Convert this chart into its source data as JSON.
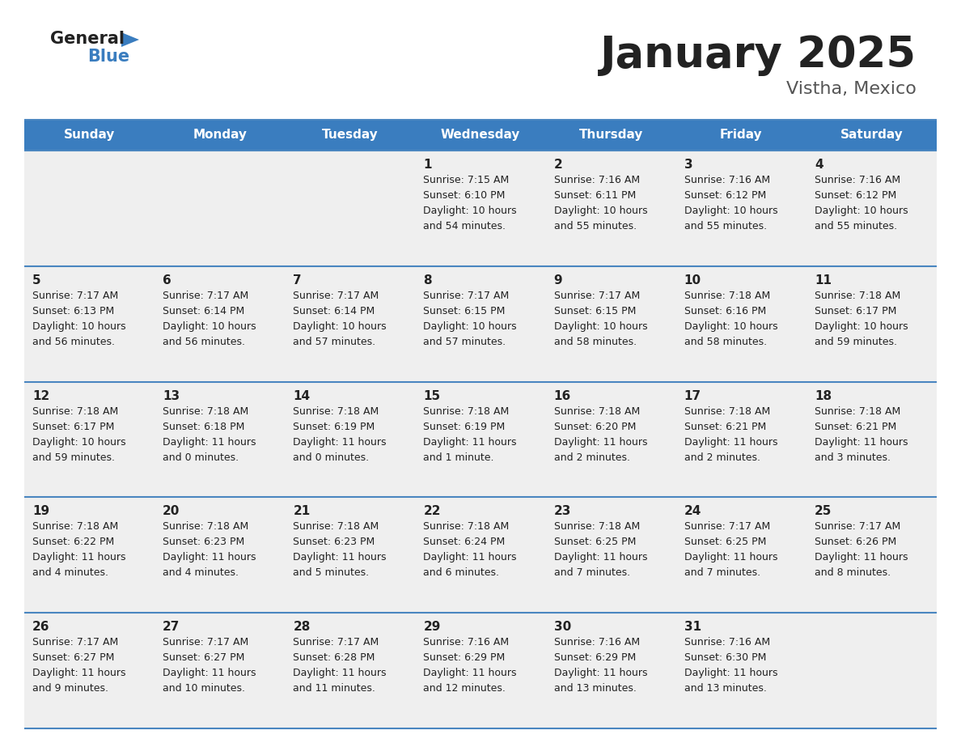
{
  "title": "January 2025",
  "subtitle": "Vistha, Mexico",
  "days_of_week": [
    "Sunday",
    "Monday",
    "Tuesday",
    "Wednesday",
    "Thursday",
    "Friday",
    "Saturday"
  ],
  "header_bg": "#3a7dbf",
  "header_text": "#ffffff",
  "row_bg": "#efefef",
  "cell_text": "#222222",
  "divider_color": "#4a86c0",
  "title_color": "#222222",
  "subtitle_color": "#555555",
  "logo_general_color": "#222222",
  "logo_blue_color": "#3a7dbf",
  "logo_triangle_color": "#3a7dbf",
  "calendar_data": [
    [
      {
        "day": "",
        "sunrise": "",
        "sunset": "",
        "daylight": ""
      },
      {
        "day": "",
        "sunrise": "",
        "sunset": "",
        "daylight": ""
      },
      {
        "day": "",
        "sunrise": "",
        "sunset": "",
        "daylight": ""
      },
      {
        "day": "1",
        "sunrise": "7:15 AM",
        "sunset": "6:10 PM",
        "daylight_line1": "Daylight: 10 hours",
        "daylight_line2": "and 54 minutes."
      },
      {
        "day": "2",
        "sunrise": "7:16 AM",
        "sunset": "6:11 PM",
        "daylight_line1": "Daylight: 10 hours",
        "daylight_line2": "and 55 minutes."
      },
      {
        "day": "3",
        "sunrise": "7:16 AM",
        "sunset": "6:12 PM",
        "daylight_line1": "Daylight: 10 hours",
        "daylight_line2": "and 55 minutes."
      },
      {
        "day": "4",
        "sunrise": "7:16 AM",
        "sunset": "6:12 PM",
        "daylight_line1": "Daylight: 10 hours",
        "daylight_line2": "and 55 minutes."
      }
    ],
    [
      {
        "day": "5",
        "sunrise": "7:17 AM",
        "sunset": "6:13 PM",
        "daylight_line1": "Daylight: 10 hours",
        "daylight_line2": "and 56 minutes."
      },
      {
        "day": "6",
        "sunrise": "7:17 AM",
        "sunset": "6:14 PM",
        "daylight_line1": "Daylight: 10 hours",
        "daylight_line2": "and 56 minutes."
      },
      {
        "day": "7",
        "sunrise": "7:17 AM",
        "sunset": "6:14 PM",
        "daylight_line1": "Daylight: 10 hours",
        "daylight_line2": "and 57 minutes."
      },
      {
        "day": "8",
        "sunrise": "7:17 AM",
        "sunset": "6:15 PM",
        "daylight_line1": "Daylight: 10 hours",
        "daylight_line2": "and 57 minutes."
      },
      {
        "day": "9",
        "sunrise": "7:17 AM",
        "sunset": "6:15 PM",
        "daylight_line1": "Daylight: 10 hours",
        "daylight_line2": "and 58 minutes."
      },
      {
        "day": "10",
        "sunrise": "7:18 AM",
        "sunset": "6:16 PM",
        "daylight_line1": "Daylight: 10 hours",
        "daylight_line2": "and 58 minutes."
      },
      {
        "day": "11",
        "sunrise": "7:18 AM",
        "sunset": "6:17 PM",
        "daylight_line1": "Daylight: 10 hours",
        "daylight_line2": "and 59 minutes."
      }
    ],
    [
      {
        "day": "12",
        "sunrise": "7:18 AM",
        "sunset": "6:17 PM",
        "daylight_line1": "Daylight: 10 hours",
        "daylight_line2": "and 59 minutes."
      },
      {
        "day": "13",
        "sunrise": "7:18 AM",
        "sunset": "6:18 PM",
        "daylight_line1": "Daylight: 11 hours",
        "daylight_line2": "and 0 minutes."
      },
      {
        "day": "14",
        "sunrise": "7:18 AM",
        "sunset": "6:19 PM",
        "daylight_line1": "Daylight: 11 hours",
        "daylight_line2": "and 0 minutes."
      },
      {
        "day": "15",
        "sunrise": "7:18 AM",
        "sunset": "6:19 PM",
        "daylight_line1": "Daylight: 11 hours",
        "daylight_line2": "and 1 minute."
      },
      {
        "day": "16",
        "sunrise": "7:18 AM",
        "sunset": "6:20 PM",
        "daylight_line1": "Daylight: 11 hours",
        "daylight_line2": "and 2 minutes."
      },
      {
        "day": "17",
        "sunrise": "7:18 AM",
        "sunset": "6:21 PM",
        "daylight_line1": "Daylight: 11 hours",
        "daylight_line2": "and 2 minutes."
      },
      {
        "day": "18",
        "sunrise": "7:18 AM",
        "sunset": "6:21 PM",
        "daylight_line1": "Daylight: 11 hours",
        "daylight_line2": "and 3 minutes."
      }
    ],
    [
      {
        "day": "19",
        "sunrise": "7:18 AM",
        "sunset": "6:22 PM",
        "daylight_line1": "Daylight: 11 hours",
        "daylight_line2": "and 4 minutes."
      },
      {
        "day": "20",
        "sunrise": "7:18 AM",
        "sunset": "6:23 PM",
        "daylight_line1": "Daylight: 11 hours",
        "daylight_line2": "and 4 minutes."
      },
      {
        "day": "21",
        "sunrise": "7:18 AM",
        "sunset": "6:23 PM",
        "daylight_line1": "Daylight: 11 hours",
        "daylight_line2": "and 5 minutes."
      },
      {
        "day": "22",
        "sunrise": "7:18 AM",
        "sunset": "6:24 PM",
        "daylight_line1": "Daylight: 11 hours",
        "daylight_line2": "and 6 minutes."
      },
      {
        "day": "23",
        "sunrise": "7:18 AM",
        "sunset": "6:25 PM",
        "daylight_line1": "Daylight: 11 hours",
        "daylight_line2": "and 7 minutes."
      },
      {
        "day": "24",
        "sunrise": "7:17 AM",
        "sunset": "6:25 PM",
        "daylight_line1": "Daylight: 11 hours",
        "daylight_line2": "and 7 minutes."
      },
      {
        "day": "25",
        "sunrise": "7:17 AM",
        "sunset": "6:26 PM",
        "daylight_line1": "Daylight: 11 hours",
        "daylight_line2": "and 8 minutes."
      }
    ],
    [
      {
        "day": "26",
        "sunrise": "7:17 AM",
        "sunset": "6:27 PM",
        "daylight_line1": "Daylight: 11 hours",
        "daylight_line2": "and 9 minutes."
      },
      {
        "day": "27",
        "sunrise": "7:17 AM",
        "sunset": "6:27 PM",
        "daylight_line1": "Daylight: 11 hours",
        "daylight_line2": "and 10 minutes."
      },
      {
        "day": "28",
        "sunrise": "7:17 AM",
        "sunset": "6:28 PM",
        "daylight_line1": "Daylight: 11 hours",
        "daylight_line2": "and 11 minutes."
      },
      {
        "day": "29",
        "sunrise": "7:16 AM",
        "sunset": "6:29 PM",
        "daylight_line1": "Daylight: 11 hours",
        "daylight_line2": "and 12 minutes."
      },
      {
        "day": "30",
        "sunrise": "7:16 AM",
        "sunset": "6:29 PM",
        "daylight_line1": "Daylight: 11 hours",
        "daylight_line2": "and 13 minutes."
      },
      {
        "day": "31",
        "sunrise": "7:16 AM",
        "sunset": "6:30 PM",
        "daylight_line1": "Daylight: 11 hours",
        "daylight_line2": "and 13 minutes."
      },
      {
        "day": "",
        "sunrise": "",
        "sunset": "",
        "daylight_line1": "",
        "daylight_line2": ""
      }
    ]
  ]
}
